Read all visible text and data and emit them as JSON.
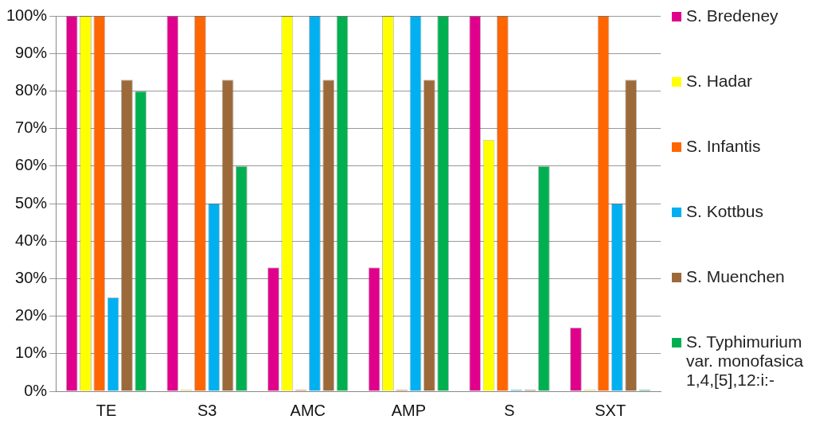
{
  "chart_data": {
    "type": "bar",
    "categories": [
      "TE",
      "S3",
      "AMC",
      "AMP",
      "S",
      "SXT"
    ],
    "series": [
      {
        "name": "S. Bredeney",
        "color": "#e0008c",
        "values": [
          100,
          100,
          33,
          33,
          100,
          17
        ]
      },
      {
        "name": "S. Hadar",
        "color": "#ffff00",
        "values": [
          100,
          0,
          100,
          100,
          67,
          0
        ]
      },
      {
        "name": "S. Infantis",
        "color": "#ff6600",
        "values": [
          100,
          100,
          0,
          0,
          100,
          100
        ]
      },
      {
        "name": "S. Kottbus",
        "color": "#00b0f0",
        "values": [
          25,
          50,
          100,
          100,
          0,
          50
        ]
      },
      {
        "name": "S. Muenchen",
        "color": "#9c6a3a",
        "values": [
          83,
          83,
          83,
          83,
          0,
          83
        ]
      },
      {
        "name": "S. Typhimurium var. monofasica 1,4,[5],12:i:-",
        "color": "#00b050",
        "values": [
          80,
          60,
          100,
          100,
          60,
          0
        ]
      }
    ],
    "ylim": [
      0,
      100
    ],
    "yticks": [
      {
        "value": 0,
        "label": "0%"
      },
      {
        "value": 10,
        "label": "10%"
      },
      {
        "value": 20,
        "label": "20%"
      },
      {
        "value": 30,
        "label": "30%"
      },
      {
        "value": 40,
        "label": "40%"
      },
      {
        "value": 50,
        "label": "50%"
      },
      {
        "value": 60,
        "label": "60%"
      },
      {
        "value": 70,
        "label": "70%"
      },
      {
        "value": 80,
        "label": "80%"
      },
      {
        "value": 90,
        "label": "90%"
      },
      {
        "value": 100,
        "label": "100%"
      }
    ],
    "grid": "y",
    "legend": "right"
  }
}
